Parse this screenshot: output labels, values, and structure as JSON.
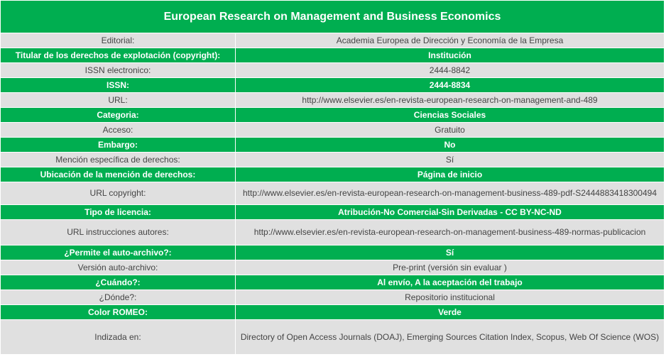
{
  "title": "European Research on Management and Business Economics",
  "rows": [
    {
      "label": "Editorial:",
      "value": "Academia Europea de Dirección y Economía de la Empresa"
    },
    {
      "label": "Titular de los derechos de explotación (copyright):",
      "value": "Institución"
    },
    {
      "label": "ISSN electronico:",
      "value": "2444-8842"
    },
    {
      "label": "ISSN:",
      "value": "2444-8834"
    },
    {
      "label": "URL:",
      "value": "http://www.elsevier.es/en-revista-european-research-on-management-and-489"
    },
    {
      "label": "Categoria:",
      "value": "Ciencias Sociales"
    },
    {
      "label": "Acceso:",
      "value": "Gratuito"
    },
    {
      "label": "Embargo:",
      "value": "No"
    },
    {
      "label": "Mención específica de derechos:",
      "value": "Sí"
    },
    {
      "label": "Ubicación de la mención de derechos:",
      "value": "Página de inicio"
    },
    {
      "label": "URL copyright:",
      "value": "http://www.elsevier.es/en-revista-european-research-on-management-business-489-pdf-S2444883418300494"
    },
    {
      "label": "Tipo de licencia:",
      "value": "Atribución-No Comercial-Sin Derivadas - CC BY-NC-ND"
    },
    {
      "label": "URL instrucciones autores:",
      "value": "http://www.elsevier.es/en-revista-european-research-on-management-business-489-normas-publicacion"
    },
    {
      "label": "¿Permite el auto-archivo?:",
      "value": "Sí"
    },
    {
      "label": "Versión auto-archivo:",
      "value": "Pre-print (versión sin evaluar )"
    },
    {
      "label": "¿Cuándo?:",
      "value": "Al envío, A la aceptación del trabajo"
    },
    {
      "label": "¿Dónde?:",
      "value": "Repositorio institucional"
    },
    {
      "label": "Color ROMEO:",
      "value": "Verde"
    },
    {
      "label": "Indizada en:",
      "value": "Directory of Open Access Journals (DOAJ), Emerging Sources Citation Index, Scopus, Web Of Science (WOS)"
    }
  ],
  "colors": {
    "accent_green": "#00ae50",
    "row_gray": "#e0e0e0",
    "text_gray": "#444444"
  }
}
